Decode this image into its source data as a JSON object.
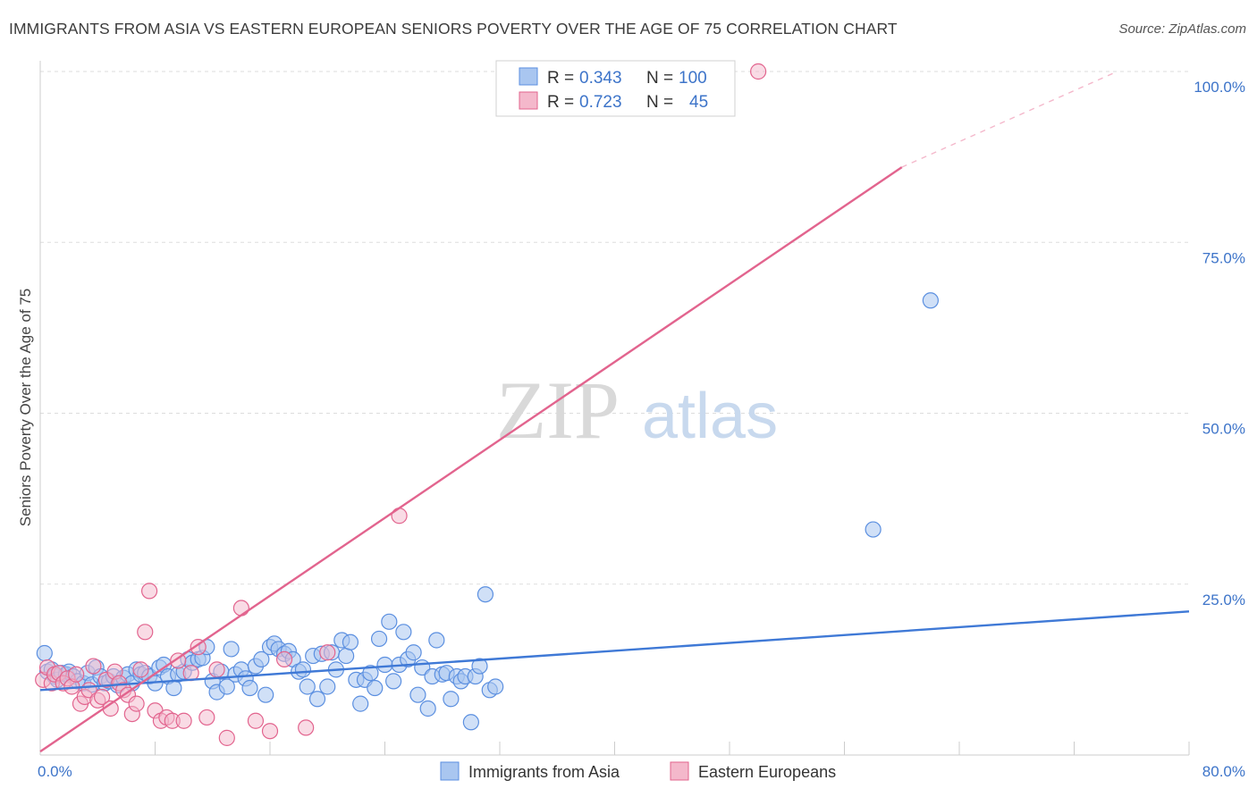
{
  "title": "IMMIGRANTS FROM ASIA VS EASTERN EUROPEAN SENIORS POVERTY OVER THE AGE OF 75 CORRELATION CHART",
  "source": "Source: ZipAtlas.com",
  "watermark": {
    "zip": "ZIP",
    "atlas": "atlas"
  },
  "colors": {
    "blue": "#5b8fe0",
    "blue_fill": "#a9c6f0",
    "pink": "#e2648e",
    "pink_fill": "#f4b8cb",
    "axis_text": "#3d74c9",
    "grid": "#dddddd"
  },
  "legend": {
    "rows": [
      {
        "r_label": "R =",
        "r_value": "0.343",
        "n_label": "N =",
        "n_value": "100"
      },
      {
        "r_label": "R =",
        "r_value": "0.723",
        "n_label": "N =",
        "n_value": "45"
      }
    ]
  },
  "chart_data": {
    "type": "scatter",
    "title": "IMMIGRANTS FROM ASIA VS EASTERN EUROPEAN SENIORS POVERTY OVER THE AGE OF 75 CORRELATION CHART",
    "xlabel": "",
    "ylabel": "Seniors Poverty Over the Age of 75",
    "xlim": [
      0,
      80
    ],
    "ylim": [
      0,
      100
    ],
    "x_tick_labels": [
      "0.0%",
      "80.0%"
    ],
    "y_tick_values": [
      25,
      50,
      75,
      100
    ],
    "y_tick_labels": [
      "25.0%",
      "50.0%",
      "75.0%",
      "100.0%"
    ],
    "grid": true,
    "series": [
      {
        "name": "Immigrants from Asia",
        "color": "#5b8fe0",
        "trend": {
          "x": [
            0,
            80
          ],
          "y": [
            9.5,
            21.0
          ]
        },
        "points": [
          [
            0.3,
            14.9
          ],
          [
            0.5,
            12.2
          ],
          [
            0.8,
            12.5
          ],
          [
            1.0,
            11.5
          ],
          [
            1.2,
            11.0
          ],
          [
            1.5,
            12.0
          ],
          [
            1.8,
            11.8
          ],
          [
            2.0,
            12.2
          ],
          [
            2.3,
            11.5
          ],
          [
            2.6,
            10.8
          ],
          [
            3.0,
            10.5
          ],
          [
            3.3,
            12.0
          ],
          [
            3.6,
            10.3
          ],
          [
            3.9,
            12.8
          ],
          [
            4.2,
            11.5
          ],
          [
            4.5,
            10.5
          ],
          [
            4.8,
            10.8
          ],
          [
            5.1,
            11.5
          ],
          [
            5.4,
            10.2
          ],
          [
            5.8,
            11.3
          ],
          [
            6.1,
            11.8
          ],
          [
            6.4,
            10.5
          ],
          [
            6.7,
            12.5
          ],
          [
            7.0,
            11.8
          ],
          [
            7.3,
            12.0
          ],
          [
            7.6,
            11.5
          ],
          [
            8.0,
            10.5
          ],
          [
            8.3,
            12.8
          ],
          [
            8.6,
            13.2
          ],
          [
            8.9,
            11.5
          ],
          [
            9.3,
            9.8
          ],
          [
            9.6,
            11.8
          ],
          [
            10.0,
            12.2
          ],
          [
            10.3,
            14.0
          ],
          [
            10.6,
            13.5
          ],
          [
            11.0,
            14.0
          ],
          [
            11.3,
            14.2
          ],
          [
            11.6,
            15.8
          ],
          [
            12.0,
            10.8
          ],
          [
            12.3,
            9.2
          ],
          [
            12.6,
            12.2
          ],
          [
            13.0,
            10.0
          ],
          [
            13.3,
            15.5
          ],
          [
            13.6,
            11.8
          ],
          [
            14.0,
            12.5
          ],
          [
            14.3,
            11.2
          ],
          [
            14.6,
            9.8
          ],
          [
            15.0,
            13.0
          ],
          [
            15.4,
            14.0
          ],
          [
            15.7,
            8.8
          ],
          [
            16.0,
            15.8
          ],
          [
            16.3,
            16.3
          ],
          [
            16.6,
            15.5
          ],
          [
            17.0,
            14.8
          ],
          [
            17.3,
            15.2
          ],
          [
            17.6,
            14.0
          ],
          [
            18.0,
            12.2
          ],
          [
            18.3,
            12.5
          ],
          [
            18.6,
            10.0
          ],
          [
            19.0,
            14.5
          ],
          [
            19.3,
            8.2
          ],
          [
            19.6,
            14.8
          ],
          [
            20.0,
            10.0
          ],
          [
            20.3,
            15.0
          ],
          [
            20.6,
            12.5
          ],
          [
            21.0,
            16.8
          ],
          [
            21.3,
            14.5
          ],
          [
            21.6,
            16.5
          ],
          [
            22.0,
            11.0
          ],
          [
            22.3,
            7.5
          ],
          [
            22.6,
            11.0
          ],
          [
            23.0,
            12.0
          ],
          [
            23.3,
            9.8
          ],
          [
            23.6,
            17.0
          ],
          [
            24.0,
            13.2
          ],
          [
            24.3,
            19.5
          ],
          [
            24.6,
            10.8
          ],
          [
            25.0,
            13.2
          ],
          [
            25.3,
            18.0
          ],
          [
            25.6,
            14.0
          ],
          [
            26.0,
            15.0
          ],
          [
            26.3,
            8.8
          ],
          [
            26.6,
            12.8
          ],
          [
            27.0,
            6.8
          ],
          [
            27.3,
            11.5
          ],
          [
            27.6,
            16.8
          ],
          [
            28.0,
            11.8
          ],
          [
            28.3,
            12.0
          ],
          [
            28.6,
            8.2
          ],
          [
            29.0,
            11.5
          ],
          [
            29.3,
            10.8
          ],
          [
            29.6,
            11.5
          ],
          [
            30.0,
            4.8
          ],
          [
            30.3,
            11.5
          ],
          [
            30.6,
            13.0
          ],
          [
            31.0,
            23.5
          ],
          [
            31.3,
            9.5
          ],
          [
            31.7,
            10.0
          ],
          [
            58.0,
            33.0
          ],
          [
            62.0,
            66.5
          ]
        ]
      },
      {
        "name": "Eastern Europeans",
        "color": "#e2648e",
        "trend": {
          "x": [
            0,
            60
          ],
          "y": [
            0.5,
            86.0
          ]
        },
        "trend_dashed": {
          "x": [
            60,
            75
          ],
          "y": [
            86.0,
            100.0
          ]
        },
        "points": [
          [
            0.2,
            11.0
          ],
          [
            0.5,
            12.8
          ],
          [
            0.8,
            10.5
          ],
          [
            1.0,
            11.8
          ],
          [
            1.3,
            12.0
          ],
          [
            1.6,
            10.5
          ],
          [
            1.9,
            11.2
          ],
          [
            2.2,
            10.0
          ],
          [
            2.5,
            11.8
          ],
          [
            2.8,
            7.5
          ],
          [
            3.1,
            8.5
          ],
          [
            3.4,
            9.5
          ],
          [
            3.7,
            13.0
          ],
          [
            4.0,
            8.0
          ],
          [
            4.3,
            8.5
          ],
          [
            4.6,
            11.0
          ],
          [
            4.9,
            6.8
          ],
          [
            5.2,
            12.2
          ],
          [
            5.5,
            10.5
          ],
          [
            5.8,
            9.5
          ],
          [
            6.1,
            8.8
          ],
          [
            6.4,
            6.0
          ],
          [
            6.7,
            7.5
          ],
          [
            7.0,
            12.5
          ],
          [
            7.3,
            18.0
          ],
          [
            7.6,
            24.0
          ],
          [
            8.0,
            6.5
          ],
          [
            8.4,
            5.0
          ],
          [
            8.8,
            5.5
          ],
          [
            9.2,
            5.0
          ],
          [
            9.6,
            13.8
          ],
          [
            10.0,
            5.0
          ],
          [
            10.5,
            12.0
          ],
          [
            11.0,
            15.8
          ],
          [
            11.6,
            5.5
          ],
          [
            12.3,
            12.5
          ],
          [
            13.0,
            2.5
          ],
          [
            14.0,
            21.5
          ],
          [
            15.0,
            5.0
          ],
          [
            16.0,
            3.5
          ],
          [
            17.0,
            14.0
          ],
          [
            18.5,
            4.0
          ],
          [
            20.0,
            15.0
          ],
          [
            25.0,
            35.0
          ],
          [
            50.0,
            100.0
          ]
        ]
      }
    ]
  },
  "bottom_legend": [
    {
      "label": "Immigrants from Asia"
    },
    {
      "label": "Eastern Europeans"
    }
  ]
}
